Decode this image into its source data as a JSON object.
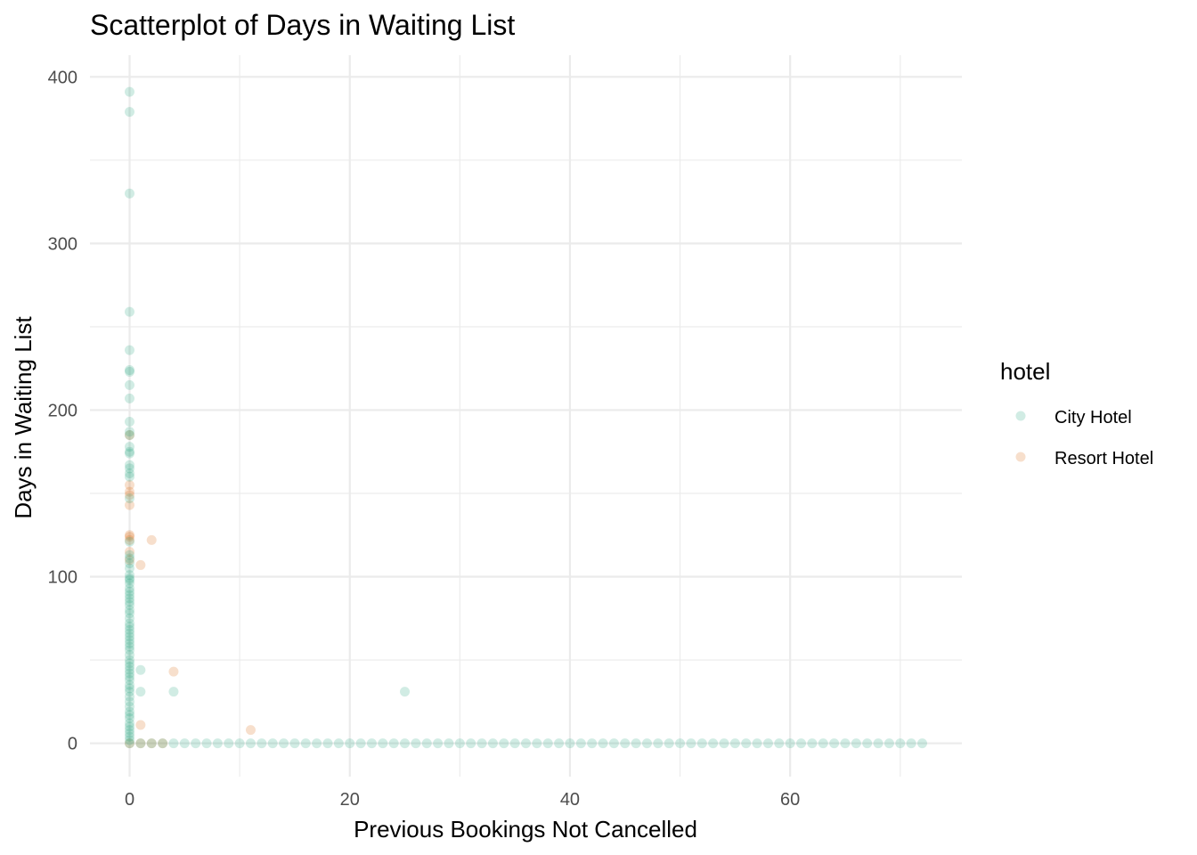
{
  "chart_data": {
    "type": "scatter",
    "title": "Scatterplot of Days in Waiting List",
    "xlabel": "Previous Bookings Not Cancelled",
    "ylabel": "Days in Waiting List",
    "xlim": [
      -3.6,
      75.6
    ],
    "ylim": [
      -20,
      413
    ],
    "x_ticks": [
      0,
      20,
      40,
      60
    ],
    "y_ticks": [
      0,
      100,
      200,
      300,
      400
    ],
    "x_tick_labels": [
      "0",
      "20",
      "40",
      "60"
    ],
    "y_tick_labels": [
      "0",
      "100",
      "200",
      "300",
      "400"
    ],
    "grid": true,
    "legend": {
      "title": "hotel",
      "position": "right",
      "entries": [
        {
          "label": "City Hotel",
          "color": "#1b9e77"
        },
        {
          "label": "Resort Hotel",
          "color": "#d95f02"
        }
      ]
    },
    "point_alpha": 0.2,
    "series": [
      {
        "name": "City Hotel",
        "color": "#1b9e77",
        "points": [
          [
            0,
            391
          ],
          [
            0,
            379
          ],
          [
            0,
            330
          ],
          [
            0,
            259
          ],
          [
            0,
            236
          ],
          [
            0,
            224
          ],
          [
            0,
            223
          ],
          [
            0,
            215
          ],
          [
            0,
            207
          ],
          [
            0,
            193
          ],
          [
            0,
            187
          ],
          [
            0,
            185
          ],
          [
            0,
            178
          ],
          [
            0,
            175
          ],
          [
            0,
            174
          ],
          [
            0,
            167
          ],
          [
            0,
            165
          ],
          [
            0,
            162
          ],
          [
            0,
            160
          ],
          [
            0,
            147
          ],
          [
            0,
            121
          ],
          [
            0,
            113
          ],
          [
            0,
            111
          ],
          [
            0,
            108
          ],
          [
            0,
            105
          ],
          [
            0,
            101
          ],
          [
            0,
            99
          ],
          [
            0,
            98
          ],
          [
            0,
            96
          ],
          [
            0,
            93
          ],
          [
            0,
            91
          ],
          [
            0,
            89
          ],
          [
            0,
            87
          ],
          [
            0,
            85
          ],
          [
            0,
            83
          ],
          [
            0,
            80
          ],
          [
            0,
            78
          ],
          [
            0,
            75
          ],
          [
            0,
            72
          ],
          [
            0,
            70
          ],
          [
            0,
            68
          ],
          [
            0,
            66
          ],
          [
            0,
            64
          ],
          [
            0,
            62
          ],
          [
            0,
            60
          ],
          [
            0,
            58
          ],
          [
            0,
            56
          ],
          [
            0,
            53
          ],
          [
            0,
            50
          ],
          [
            0,
            48
          ],
          [
            0,
            46
          ],
          [
            0,
            44
          ],
          [
            0,
            42
          ],
          [
            0,
            40
          ],
          [
            0,
            38
          ],
          [
            0,
            35
          ],
          [
            0,
            33
          ],
          [
            0,
            31
          ],
          [
            0,
            28
          ],
          [
            0,
            25
          ],
          [
            0,
            22
          ],
          [
            0,
            19
          ],
          [
            0,
            17
          ],
          [
            0,
            15
          ],
          [
            0,
            12
          ],
          [
            0,
            10
          ],
          [
            0,
            8
          ],
          [
            0,
            6
          ],
          [
            0,
            4
          ],
          [
            0,
            2
          ],
          [
            0,
            0
          ],
          [
            1,
            44
          ],
          [
            1,
            31
          ],
          [
            4,
            31
          ],
          [
            25,
            31
          ],
          [
            1,
            0
          ],
          [
            2,
            0
          ],
          [
            3,
            0
          ],
          [
            4,
            0
          ],
          [
            5,
            0
          ],
          [
            6,
            0
          ],
          [
            7,
            0
          ],
          [
            8,
            0
          ],
          [
            9,
            0
          ],
          [
            10,
            0
          ],
          [
            11,
            0
          ],
          [
            12,
            0
          ],
          [
            13,
            0
          ],
          [
            14,
            0
          ],
          [
            15,
            0
          ],
          [
            16,
            0
          ],
          [
            17,
            0
          ],
          [
            18,
            0
          ],
          [
            19,
            0
          ],
          [
            20,
            0
          ],
          [
            21,
            0
          ],
          [
            22,
            0
          ],
          [
            23,
            0
          ],
          [
            24,
            0
          ],
          [
            25,
            0
          ],
          [
            26,
            0
          ],
          [
            27,
            0
          ],
          [
            28,
            0
          ],
          [
            29,
            0
          ],
          [
            30,
            0
          ],
          [
            31,
            0
          ],
          [
            32,
            0
          ],
          [
            33,
            0
          ],
          [
            34,
            0
          ],
          [
            35,
            0
          ],
          [
            36,
            0
          ],
          [
            37,
            0
          ],
          [
            38,
            0
          ],
          [
            39,
            0
          ],
          [
            40,
            0
          ],
          [
            41,
            0
          ],
          [
            42,
            0
          ],
          [
            43,
            0
          ],
          [
            44,
            0
          ],
          [
            45,
            0
          ],
          [
            46,
            0
          ],
          [
            47,
            0
          ],
          [
            48,
            0
          ],
          [
            49,
            0
          ],
          [
            50,
            0
          ],
          [
            51,
            0
          ],
          [
            52,
            0
          ],
          [
            53,
            0
          ],
          [
            54,
            0
          ],
          [
            55,
            0
          ],
          [
            56,
            0
          ],
          [
            57,
            0
          ],
          [
            58,
            0
          ],
          [
            59,
            0
          ],
          [
            60,
            0
          ],
          [
            61,
            0
          ],
          [
            62,
            0
          ],
          [
            63,
            0
          ],
          [
            64,
            0
          ],
          [
            65,
            0
          ],
          [
            66,
            0
          ],
          [
            67,
            0
          ],
          [
            68,
            0
          ],
          [
            69,
            0
          ],
          [
            70,
            0
          ],
          [
            71,
            0
          ],
          [
            72,
            0
          ]
        ]
      },
      {
        "name": "Resort Hotel",
        "color": "#d95f02",
        "points": [
          [
            0,
            185
          ],
          [
            0,
            155
          ],
          [
            0,
            151
          ],
          [
            0,
            149
          ],
          [
            0,
            143
          ],
          [
            0,
            125
          ],
          [
            0,
            124
          ],
          [
            0,
            122
          ],
          [
            0,
            115
          ],
          [
            0,
            110
          ],
          [
            1,
            107
          ],
          [
            2,
            122
          ],
          [
            4,
            43
          ],
          [
            1,
            11
          ],
          [
            11,
            8
          ],
          [
            0,
            0
          ],
          [
            1,
            0
          ],
          [
            2,
            0
          ],
          [
            3,
            0
          ]
        ]
      }
    ]
  }
}
